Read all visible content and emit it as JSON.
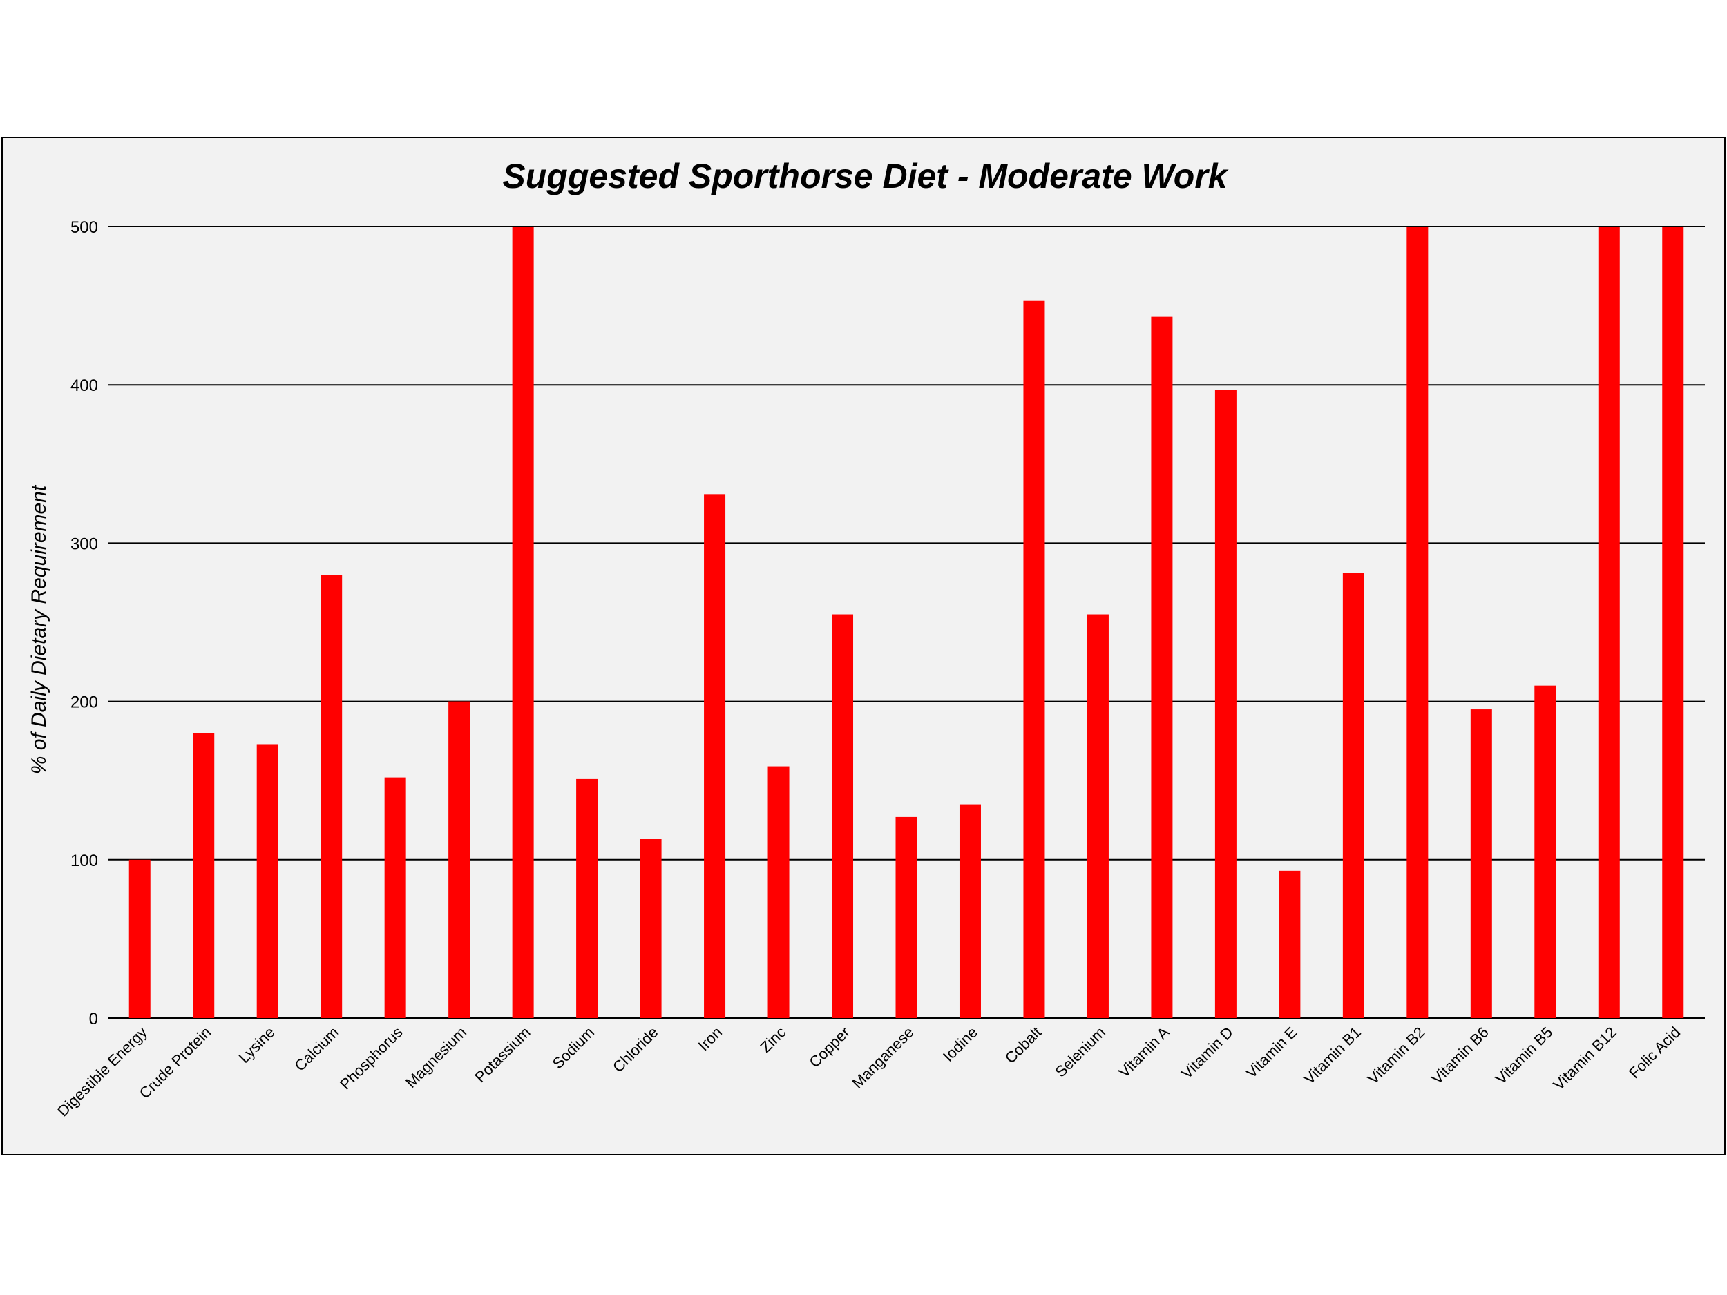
{
  "chart_data": {
    "type": "bar",
    "title": "Suggested Sporthorse Diet - Moderate Work",
    "xlabel": "",
    "ylabel": "% of Daily Dietary Requirement",
    "ylim": [
      0,
      500
    ],
    "yticks": [
      0,
      100,
      200,
      300,
      400,
      500
    ],
    "grid": true,
    "legend": "none",
    "bar_color": "#ff0000",
    "categories": [
      "Digestible Energy",
      "Crude Protein",
      "Lysine",
      "Calcium",
      "Phosphorus",
      "Magnesium",
      "Potassium",
      "Sodium",
      "Chloride",
      "Iron",
      "Zinc",
      "Copper",
      "Manganese",
      "Iodine",
      "Cobalt",
      "Selenium",
      "Vitamin A",
      "Vitamin D",
      "Vitamin E",
      "Vitamin B1",
      "Vitamin B2",
      "Vitamin B6",
      "Vitamin B5",
      "Vitamin B12",
      "Folic Acid"
    ],
    "values": [
      100,
      180,
      173,
      280,
      152,
      200,
      500,
      151,
      113,
      331,
      159,
      255,
      127,
      135,
      453,
      255,
      443,
      397,
      93,
      281,
      500,
      195,
      210,
      500,
      500
    ]
  }
}
